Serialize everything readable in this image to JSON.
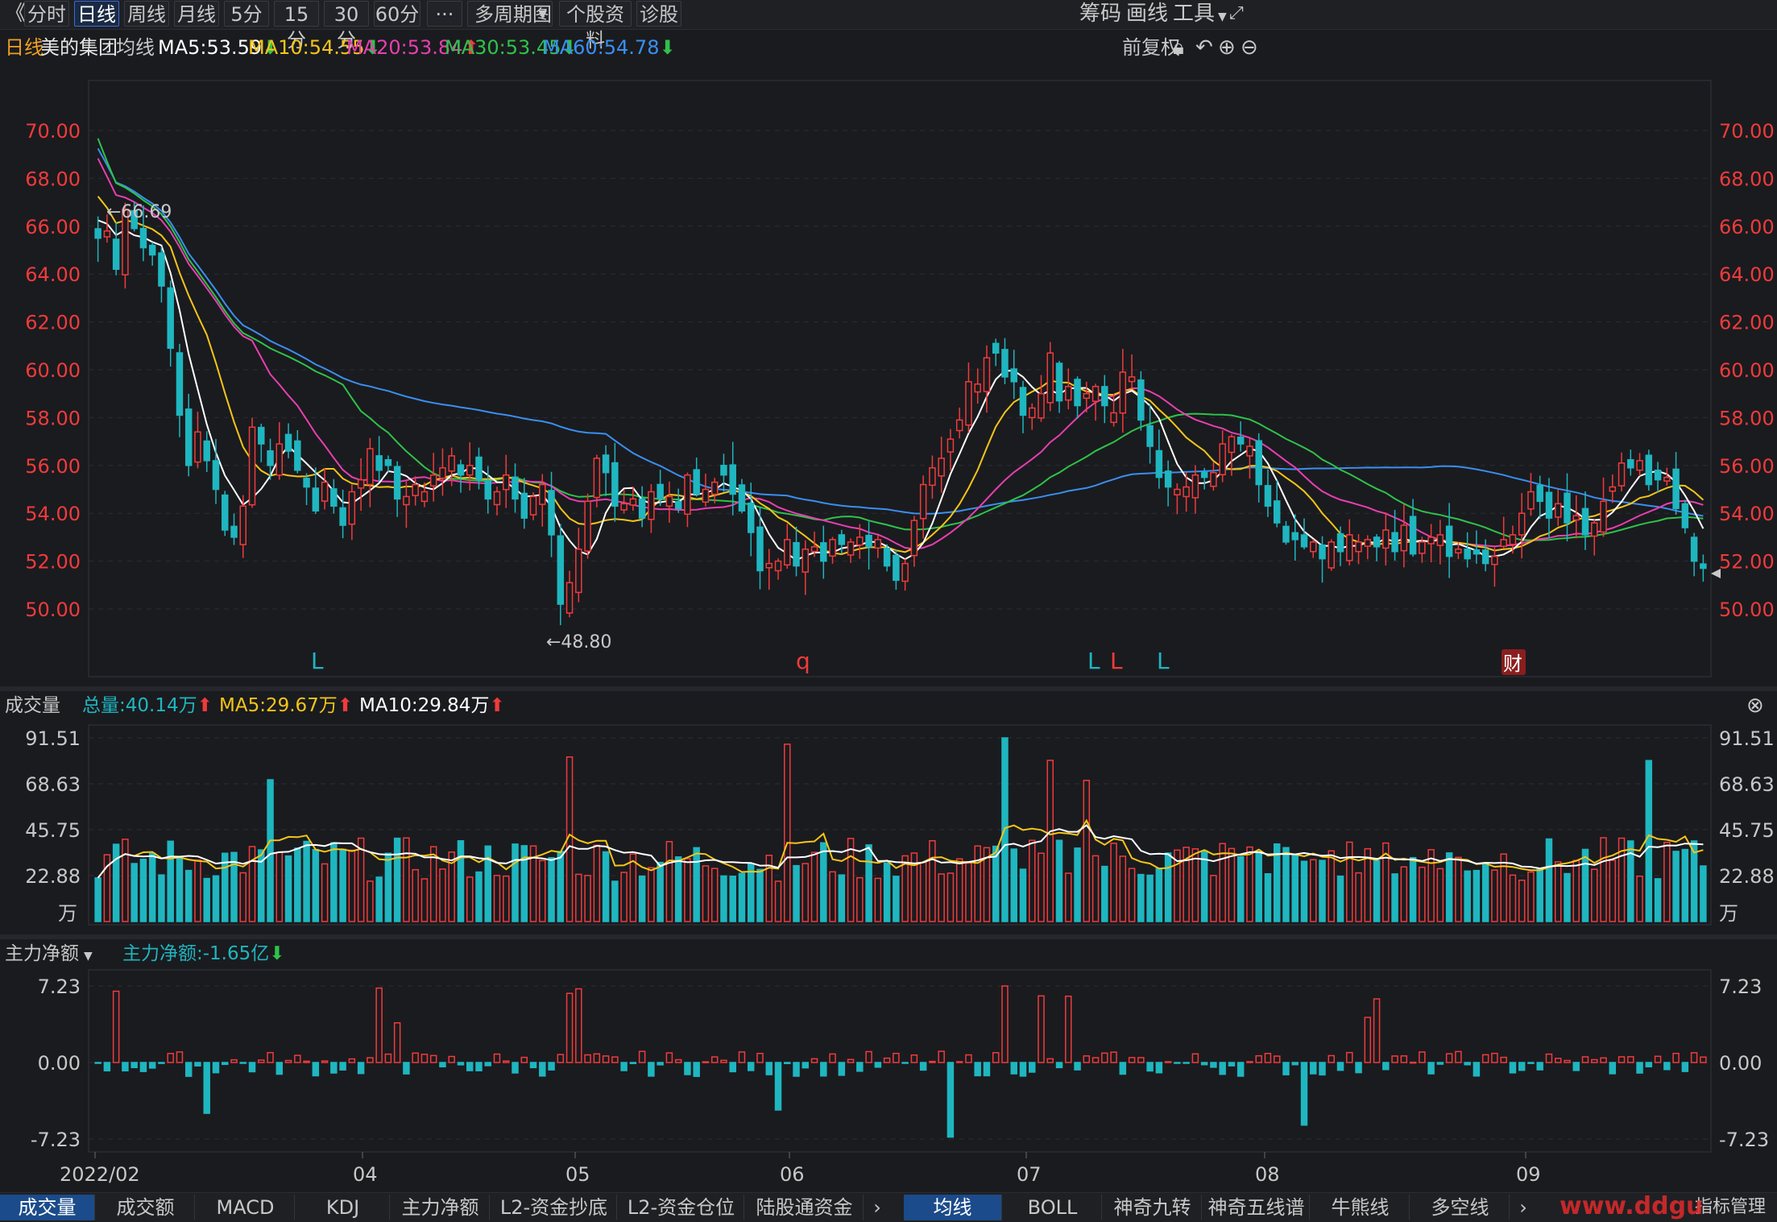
{
  "toolbar": {
    "back": "《",
    "tabs": [
      "分时",
      "日线",
      "周线",
      "月线",
      "5分",
      "15分",
      "30分",
      "60分",
      "···",
      "多周期图",
      "个股资料",
      "诊股"
    ],
    "active_tab": "日线",
    "right_items": [
      "筹码",
      "画线",
      "工具"
    ]
  },
  "ma_bar": {
    "period": "日线",
    "name": "美的集团",
    "label": "均线",
    "ma5": "MA5:53.59",
    "ma10": "MA10:54.55",
    "ma20": "MA20:53.84",
    "ma30": "MA30:53.45",
    "ma60": "MA60:54.78",
    "adjust": "前复权",
    "colors": {
      "ma5": "#ffffff",
      "ma10": "#f5c518",
      "ma20": "#e83fb0",
      "ma30": "#2fc24a",
      "ma60": "#3a8ff0"
    }
  },
  "price_axis": {
    "labels": [
      "70.00",
      "68.00",
      "66.00",
      "64.00",
      "62.00",
      "60.00",
      "58.00",
      "56.00",
      "54.00",
      "52.00",
      "50.00"
    ],
    "high_note": "66.69",
    "low_note": "48.80",
    "markers": [
      "L",
      "q",
      "L",
      "L",
      "L",
      "财"
    ]
  },
  "volume": {
    "title": "成交量",
    "total": "总量:40.14万",
    "ma5": "MA5:29.67万",
    "ma10": "MA10:29.84万",
    "axis": [
      "91.51",
      "68.63",
      "45.75",
      "22.88",
      "万"
    ]
  },
  "capital": {
    "title": "主力净额",
    "value": "主力净额:-1.65亿",
    "axis": [
      "7.23",
      "0.00",
      "-7.23"
    ]
  },
  "time_axis": [
    "2022/02",
    "04",
    "05",
    "06",
    "07",
    "08",
    "09"
  ],
  "bottom_left_tabs": [
    "成交量",
    "成交额",
    "MACD",
    "KDJ",
    "主力净额",
    "L2-资金抄底",
    "L2-资金仓位",
    "陆股通资金"
  ],
  "bottom_left_active": "成交量",
  "bottom_right_tabs": [
    "均线",
    "BOLL",
    "神奇九转",
    "神奇五线谱",
    "牛熊线",
    "多空线"
  ],
  "bottom_right_active": "均线",
  "bottom_right_edge": "指标管理",
  "watermark": "www.ddgu",
  "chart_data": {
    "type": "candlestick",
    "title": "美的集团",
    "ylim": [
      48,
      72
    ],
    "close_series": [
      65.5,
      65.8,
      64.2,
      66.7,
      65.9,
      65.1,
      64.8,
      63.5,
      60.9,
      58.1,
      56.0,
      57.4,
      56.2,
      55.0,
      53.3,
      53.0,
      54.3,
      57.6,
      56.9,
      56.0,
      56.9,
      56.6,
      55.8,
      55.1,
      54.1,
      55.3,
      54.3,
      53.5,
      54.9,
      55.4,
      56.7,
      55.8,
      56.0,
      54.6,
      54.7,
      55.2,
      54.9,
      55.6,
      55.9,
      56.4,
      55.6,
      56.0,
      55.4,
      54.6,
      54.9,
      55.6,
      54.6,
      53.8,
      54.7,
      55.2,
      53.1,
      50.2,
      51.1,
      52.5,
      54.5,
      56.3,
      55.7,
      54.3,
      54.4,
      54.6,
      53.8,
      54.9,
      54.6,
      54.7,
      54.2,
      55.6,
      54.8,
      55.0,
      55.3,
      55.6,
      54.8,
      54.1,
      53.2,
      51.6,
      51.9,
      52.0,
      52.9,
      51.8,
      52.5,
      52.6,
      52.0,
      52.9,
      52.7,
      52.8,
      53.0,
      52.6,
      52.9,
      51.8,
      51.2,
      51.9,
      53.7,
      55.2,
      55.9,
      56.3,
      57.1,
      57.9,
      59.5,
      59.4,
      60.5,
      60.7,
      59.7,
      59.5,
      58.1,
      58.4,
      59.0,
      60.7,
      58.7,
      59.3,
      58.5,
      59.0,
      59.3,
      58.5,
      58.2,
      59.9,
      59.7,
      57.9,
      56.8,
      55.5,
      55.1,
      55.0,
      55.1,
      55.6,
      55.5,
      55.7,
      56.9,
      57.2,
      56.9,
      56.8,
      55.2,
      54.3,
      53.6,
      52.8,
      52.9,
      52.6,
      52.8,
      52.1,
      52.8,
      52.4,
      53.1,
      52.8,
      52.9,
      52.6,
      53.3,
      52.4,
      53.5,
      52.3,
      52.8,
      53.0,
      53.1,
      52.2,
      52.5,
      52.1,
      52.3,
      51.9,
      52.2,
      52.9,
      53.1,
      54.0,
      54.9,
      54.5,
      53.8,
      54.4,
      53.6,
      53.9,
      53.1,
      53.6,
      54.5,
      55.1,
      56.1,
      55.9,
      56.2,
      55.2,
      55.4,
      55.5,
      54.2,
      53.4,
      52.0,
      51.7
    ],
    "volume_axis_max": 91.51,
    "volume_unit": "万",
    "capital_axis": [
      -7.23,
      7.23
    ],
    "capital_unit": "亿"
  }
}
